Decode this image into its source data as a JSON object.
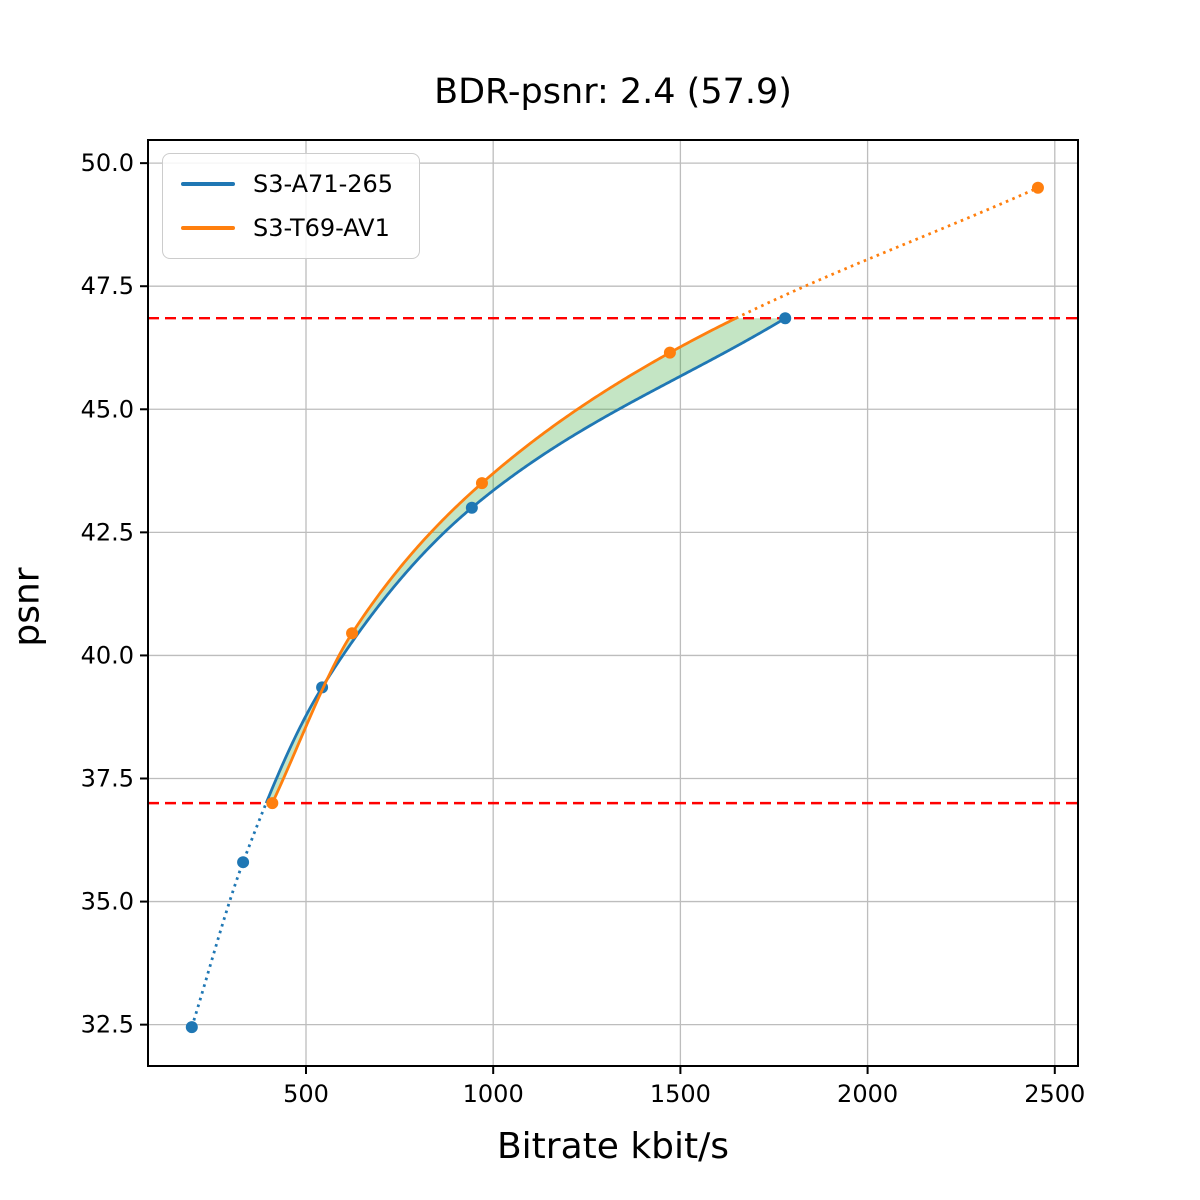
{
  "title": "BDR-psnr: 2.4 (57.9)",
  "chart_data": {
    "type": "line",
    "title": "BDR-psnr: 2.4 (57.9)",
    "xlabel": "Bitrate kbit/s",
    "ylabel": "psnr",
    "x_ticks": [
      500,
      1000,
      1500,
      2000,
      2500
    ],
    "y_ticks": [
      32.5,
      35.0,
      37.5,
      40.0,
      42.5,
      45.0,
      47.5,
      50.0
    ],
    "x_range": [
      78,
      2562
    ],
    "y_range": [
      31.66,
      50.47
    ],
    "grid": true,
    "grid_color": "#bdbdbd",
    "legend_position": "upper left",
    "series": [
      {
        "name": "S3-A71-265",
        "color": "#1f77b4",
        "x": [
          195,
          332,
          543,
          943,
          1780
        ],
        "y": [
          32.45,
          35.8,
          39.35,
          43.0,
          46.85
        ],
        "style_note": "solid inside overlap range, dotted outside"
      },
      {
        "name": "S3-T69-AV1",
        "color": "#ff7f0e",
        "x": [
          410,
          623,
          970,
          1472,
          2455
        ],
        "y": [
          37.0,
          40.45,
          43.5,
          46.15,
          49.5
        ],
        "style_note": "solid inside overlap range, dotted outside"
      }
    ],
    "overlap_lines": {
      "color": "#ff0000",
      "style": "dashed",
      "low": 37.0,
      "high": 46.85
    },
    "fill_between": {
      "color": "rgba(44,160,44,0.28)",
      "note": "shaded BD area between the two curves within overlap range"
    }
  }
}
